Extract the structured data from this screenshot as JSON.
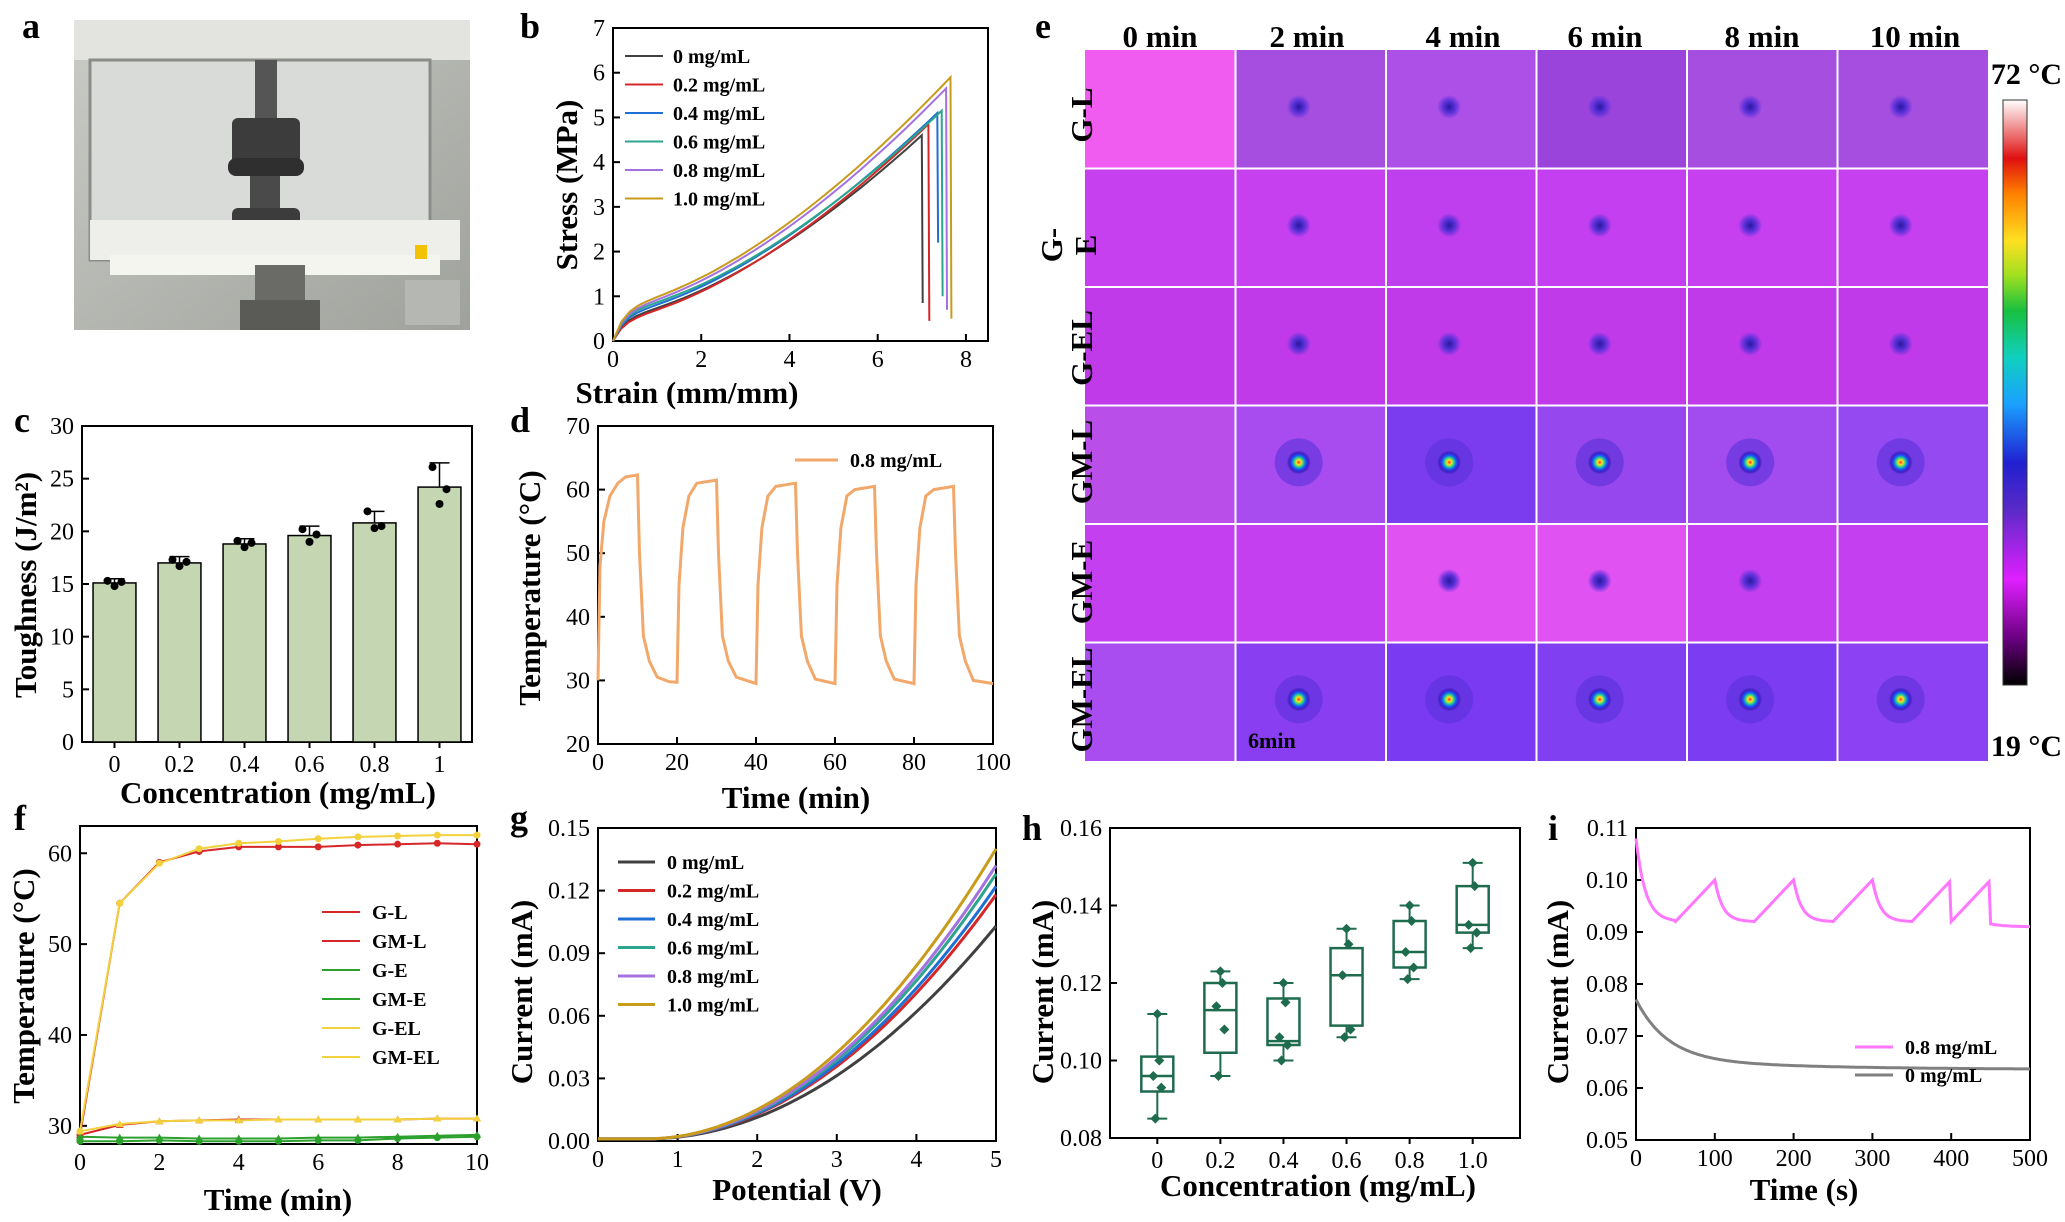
{
  "colors": {
    "series6": [
      "#404040",
      "#d62728",
      "#1f6fd6",
      "#2ca58d",
      "#a371e0",
      "#c89b1b"
    ],
    "bar_fill": "#c5d6b2",
    "orange": "#f2a86b",
    "box_green": "#1e6b4e",
    "pink": "#ff77ff",
    "grey": "#808080",
    "ir_bg": "#c437f0"
  },
  "panels": {
    "a": {
      "letter": "a"
    },
    "b": {
      "letter": "b"
    },
    "c": {
      "letter": "c"
    },
    "d": {
      "letter": "d"
    },
    "e": {
      "letter": "e"
    },
    "f": {
      "letter": "f"
    },
    "g": {
      "letter": "g"
    },
    "h": {
      "letter": "h"
    },
    "i": {
      "letter": "i"
    }
  },
  "chart_data": [
    {
      "id": "b",
      "type": "line",
      "title": "",
      "xlabel": "Strain (mm/mm)",
      "ylabel": "Stress (MPa)",
      "xlim": [
        0,
        8.5
      ],
      "ylim": [
        0,
        7
      ],
      "xticks": [
        0,
        2,
        4,
        6,
        8
      ],
      "yticks": [
        0,
        1,
        2,
        3,
        4,
        5,
        6,
        7
      ],
      "legend_position": "top-left",
      "series": [
        {
          "name": "0 mg/mL",
          "break_x": 7.0,
          "peak": 4.6,
          "low": 0.85
        },
        {
          "name": "0.2 mg/mL",
          "break_x": 7.15,
          "peak": 4.85,
          "low": 0.45
        },
        {
          "name": "0.4 mg/mL",
          "break_x": 7.35,
          "peak": 5.1,
          "low": 2.2
        },
        {
          "name": "0.6 mg/mL",
          "break_x": 7.45,
          "peak": 5.15,
          "low": 1.0
        },
        {
          "name": "0.8 mg/mL",
          "break_x": 7.55,
          "peak": 5.65,
          "low": 0.7
        },
        {
          "name": "1.0 mg/mL",
          "break_x": 7.65,
          "peak": 5.9,
          "low": 0.5
        }
      ]
    },
    {
      "id": "c",
      "type": "bar",
      "title": "",
      "xlabel": "Concentration (mg/mL)",
      "ylabel": "Toughness (J/m²)",
      "categories": [
        "0",
        "0.2",
        "0.4",
        "0.6",
        "0.8",
        "1"
      ],
      "values": [
        15.1,
        17.0,
        18.8,
        19.6,
        20.8,
        24.2
      ],
      "errors": [
        0.4,
        0.6,
        0.5,
        0.9,
        1.1,
        2.3
      ],
      "points": [
        [
          15.3,
          14.8,
          15.2
        ],
        [
          17.3,
          16.7,
          17.1
        ],
        [
          19.1,
          18.5,
          18.9
        ],
        [
          20.2,
          19.0,
          19.7
        ],
        [
          21.9,
          20.3,
          20.5
        ],
        [
          26.1,
          22.6,
          24.0
        ]
      ],
      "ylim": [
        0,
        30
      ],
      "yticks": [
        0,
        5,
        10,
        15,
        20,
        25,
        30
      ]
    },
    {
      "id": "d",
      "type": "line",
      "title": "",
      "xlabel": "Time (min)",
      "ylabel": "Temperature (°C)",
      "xlim": [
        0,
        100
      ],
      "ylim": [
        20,
        70
      ],
      "xticks": [
        0,
        20,
        40,
        60,
        80,
        100
      ],
      "yticks": [
        20,
        30,
        40,
        50,
        60,
        70
      ],
      "legend_position": "top-right",
      "series": [
        {
          "name": "0.8 mg/mL",
          "x": [
            0,
            0.5,
            1.5,
            3,
            5,
            7,
            10,
            10.5,
            11.5,
            13,
            15,
            18,
            20,
            20.5,
            21.5,
            23,
            25,
            30,
            30.5,
            31.5,
            33,
            35,
            40,
            40.5,
            41.5,
            43,
            45,
            50,
            50.5,
            51.5,
            53,
            55,
            60,
            60.5,
            61.5,
            63,
            65,
            70,
            70.5,
            71.5,
            73,
            75,
            80,
            80.5,
            81.5,
            83,
            85,
            90,
            90.5,
            91.5,
            93,
            95,
            100
          ],
          "y": [
            30,
            48,
            55,
            59,
            61,
            62,
            62.3,
            50,
            37,
            33,
            30.5,
            29.8,
            29.7,
            45,
            54,
            59,
            61,
            61.5,
            50,
            37,
            33,
            30.5,
            29.5,
            45,
            54,
            59,
            60.5,
            61,
            50,
            37,
            33,
            30.2,
            29.5,
            45,
            54,
            59,
            60,
            60.5,
            50,
            37,
            33,
            30.2,
            29.5,
            45,
            54,
            59,
            60,
            60.5,
            50,
            37,
            33,
            30,
            29.5
          ]
        }
      ]
    },
    {
      "id": "f",
      "type": "line",
      "title": "",
      "xlabel": "Time (min)",
      "ylabel": "Temperature (°C)",
      "xlim": [
        0,
        10
      ],
      "ylim": [
        28,
        63
      ],
      "xticks": [
        0,
        2,
        4,
        6,
        8,
        10
      ],
      "yticks": [
        30,
        40,
        50,
        60
      ],
      "legend_position": "right",
      "x": [
        0,
        1,
        2,
        3,
        4,
        5,
        6,
        7,
        8,
        9,
        10
      ],
      "series": [
        {
          "name": "G-L",
          "values": [
            29,
            30.1,
            30.5,
            30.6,
            30.7,
            30.7,
            30.7,
            30.7,
            30.7,
            30.8,
            30.8
          ]
        },
        {
          "name": "GM-L",
          "values": [
            29,
            54.5,
            59,
            60.2,
            60.7,
            60.7,
            60.7,
            60.9,
            61,
            61.1,
            61
          ]
        },
        {
          "name": "G-E",
          "values": [
            28.8,
            28.7,
            28.7,
            28.6,
            28.6,
            28.6,
            28.7,
            28.7,
            28.8,
            28.9,
            29
          ]
        },
        {
          "name": "GM-E",
          "values": [
            28.3,
            28.3,
            28.4,
            28.3,
            28.3,
            28.3,
            28.4,
            28.4,
            28.6,
            28.7,
            28.8
          ]
        },
        {
          "name": "G-EL",
          "values": [
            29.4,
            30.2,
            30.5,
            30.6,
            30.6,
            30.7,
            30.7,
            30.7,
            30.7,
            30.8,
            30.8
          ]
        },
        {
          "name": "GM-EL",
          "values": [
            29.4,
            54.5,
            58.9,
            60.5,
            61.1,
            61.3,
            61.6,
            61.8,
            61.9,
            62,
            62
          ]
        }
      ],
      "series_colors": [
        "#d62728",
        "#d62728",
        "#2ca02c",
        "#2ca02c",
        "#f2d13d",
        "#f2d13d"
      ]
    },
    {
      "id": "g",
      "type": "line",
      "title": "",
      "xlabel": "Potential (V)",
      "ylabel": "Current (mA)",
      "xlim": [
        0,
        5
      ],
      "ylim": [
        0,
        0.15
      ],
      "xticks": [
        0,
        1,
        2,
        3,
        4,
        5
      ],
      "yticks": [
        "0.00",
        "0.03",
        "0.06",
        "0.09",
        "0.12",
        "0.15"
      ],
      "legend_position": "top-left",
      "series": [
        {
          "name": "0 mg/mL",
          "end": 0.102
        },
        {
          "name": "0.2 mg/mL",
          "end": 0.117
        },
        {
          "name": "0.4 mg/mL",
          "end": 0.121
        },
        {
          "name": "0.6 mg/mL",
          "end": 0.127
        },
        {
          "name": "0.8 mg/mL",
          "end": 0.131
        },
        {
          "name": "1.0 mg/mL",
          "end": 0.139
        }
      ]
    },
    {
      "id": "h",
      "type": "box",
      "title": "",
      "xlabel": "Concentration (mg/mL)",
      "ylabel": "Current (mA)",
      "categories": [
        "0",
        "0.2",
        "0.4",
        "0.6",
        "0.8",
        "1.0"
      ],
      "boxes": [
        {
          "min": 0.085,
          "q1": 0.092,
          "median": 0.096,
          "q3": 0.101,
          "max": 0.112,
          "points": [
            0.085,
            0.093,
            0.096,
            0.1,
            0.112
          ]
        },
        {
          "min": 0.096,
          "q1": 0.102,
          "median": 0.113,
          "q3": 0.12,
          "max": 0.123,
          "points": [
            0.096,
            0.108,
            0.114,
            0.12,
            0.123
          ]
        },
        {
          "min": 0.1,
          "q1": 0.104,
          "median": 0.105,
          "q3": 0.116,
          "max": 0.12,
          "points": [
            0.1,
            0.104,
            0.106,
            0.115,
            0.12
          ]
        },
        {
          "min": 0.106,
          "q1": 0.109,
          "median": 0.122,
          "q3": 0.129,
          "max": 0.134,
          "points": [
            0.106,
            0.108,
            0.122,
            0.13,
            0.134
          ]
        },
        {
          "min": 0.121,
          "q1": 0.124,
          "median": 0.128,
          "q3": 0.136,
          "max": 0.14,
          "points": [
            0.121,
            0.124,
            0.128,
            0.136,
            0.14
          ]
        },
        {
          "min": 0.129,
          "q1": 0.133,
          "median": 0.135,
          "q3": 0.145,
          "max": 0.151,
          "points": [
            0.129,
            0.133,
            0.135,
            0.145,
            0.151
          ]
        }
      ],
      "ylim": [
        0.08,
        0.16
      ],
      "yticks": [
        "0.08",
        "0.10",
        "0.12",
        "0.14",
        "0.16"
      ]
    },
    {
      "id": "i",
      "type": "line",
      "title": "",
      "xlabel": "Time (s)",
      "ylabel": "Current (mA)",
      "xlim": [
        0,
        500
      ],
      "ylim": [
        0.05,
        0.11
      ],
      "xticks": [
        0,
        100,
        200,
        300,
        400,
        500
      ],
      "yticks": [
        "0.05",
        "0.06",
        "0.07",
        "0.08",
        "0.09",
        "0.10",
        "0.11"
      ],
      "legend_position": "center-right",
      "series": [
        {
          "name": "0.8 mg/mL"
        },
        {
          "name": "0 mg/mL"
        }
      ]
    },
    {
      "id": "e",
      "type": "heatmap",
      "title": "",
      "columns": [
        "0 min",
        "2 min",
        "4 min",
        "6 min",
        "8 min",
        "10 min"
      ],
      "rows": [
        "G-L",
        "G-E",
        "G-EL",
        "GM-L",
        "GM-E",
        "GM-EL"
      ],
      "row_label_g_e": [
        "G-",
        "E"
      ],
      "colorbar_max": "72 °C",
      "colorbar_min": "19 °C",
      "annotation": "6min"
    }
  ]
}
